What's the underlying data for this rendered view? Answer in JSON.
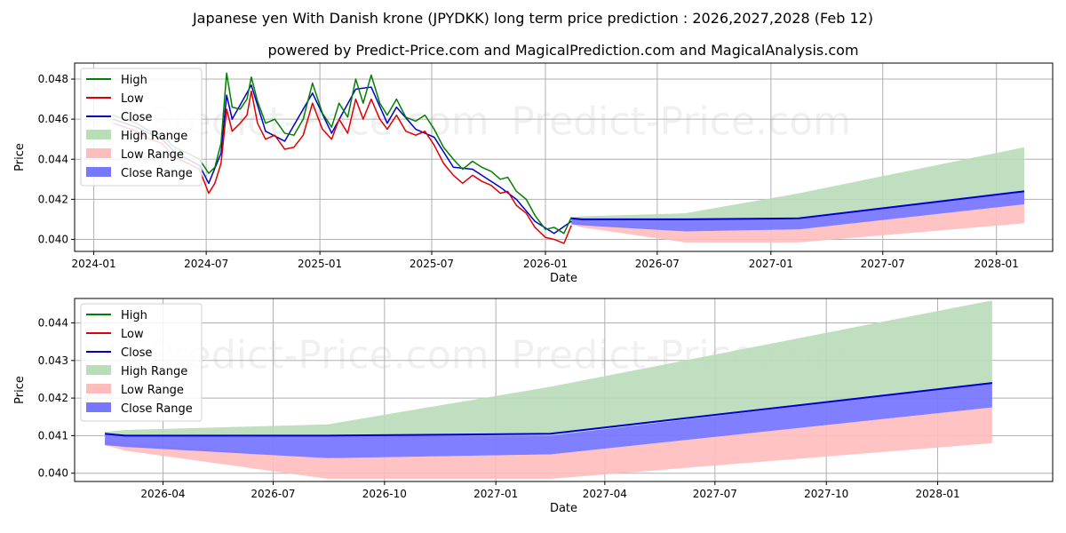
{
  "title": "Japanese yen With Danish krone (JPYDKK) long term price prediction : 2026,2027,2028 (Feb 12)",
  "subtitle": "powered by Predict-Price.com and MagicalPrediction.com and MagicalAnalysis.com",
  "watermark": "Predict-Price.com",
  "colors": {
    "high": "#008000",
    "low": "#e00000",
    "close": "#0000cc",
    "high_range": "#b9dcb9",
    "low_range": "#ffbcbc",
    "close_range": "#7878ff"
  },
  "legend": [
    "High",
    "Low",
    "Close",
    "High Range",
    "Low Range",
    "Close Range"
  ],
  "chart_data": [
    {
      "type": "line",
      "panel": "top",
      "xlabel": "Date",
      "ylabel": "Price",
      "xlim": [
        "2023-12-01",
        "2028-04-01"
      ],
      "ylim": [
        0.0394,
        0.0488
      ],
      "yticks": [
        0.04,
        0.042,
        0.044,
        0.046,
        0.048
      ],
      "ytick_labels": [
        "0.040",
        "0.042",
        "0.044",
        "0.046",
        "0.048"
      ],
      "xticks": [
        "2024-01-01",
        "2024-07-01",
        "2025-01-01",
        "2025-07-01",
        "2026-01-01",
        "2026-07-01",
        "2027-01-01",
        "2027-07-01",
        "2028-01-01"
      ],
      "xtick_labels": [
        "2024-01",
        "2024-07",
        "2025-01",
        "2025-07",
        "2026-01",
        "2026-07",
        "2027-01",
        "2027-07",
        "2028-01"
      ],
      "grid": true,
      "legend_position": "top-left",
      "history_high": [
        [
          "2024-02-01",
          0.0462
        ],
        [
          "2024-02-20",
          0.046
        ],
        [
          "2024-03-10",
          0.0458
        ],
        [
          "2024-04-01",
          0.0454
        ],
        [
          "2024-04-20",
          0.0452
        ],
        [
          "2024-05-10",
          0.0446
        ],
        [
          "2024-06-01",
          0.0443
        ],
        [
          "2024-06-20",
          0.044
        ],
        [
          "2024-07-05",
          0.0433
        ],
        [
          "2024-07-15",
          0.0436
        ],
        [
          "2024-07-25",
          0.0448
        ],
        [
          "2024-08-03",
          0.0483
        ],
        [
          "2024-08-12",
          0.0466
        ],
        [
          "2024-08-25",
          0.0465
        ],
        [
          "2024-09-05",
          0.047
        ],
        [
          "2024-09-12",
          0.0481
        ],
        [
          "2024-09-22",
          0.0469
        ],
        [
          "2024-10-05",
          0.0458
        ],
        [
          "2024-10-20",
          0.046
        ],
        [
          "2024-11-05",
          0.0453
        ],
        [
          "2024-11-20",
          0.0452
        ],
        [
          "2024-12-05",
          0.046
        ],
        [
          "2024-12-20",
          0.0478
        ],
        [
          "2025-01-05",
          0.0463
        ],
        [
          "2025-01-20",
          0.0456
        ],
        [
          "2025-02-01",
          0.0468
        ],
        [
          "2025-02-15",
          0.0461
        ],
        [
          "2025-02-28",
          0.048
        ],
        [
          "2025-03-12",
          0.0468
        ],
        [
          "2025-03-25",
          0.0482
        ],
        [
          "2025-04-08",
          0.0468
        ],
        [
          "2025-04-20",
          0.0462
        ],
        [
          "2025-05-05",
          0.047
        ],
        [
          "2025-05-20",
          0.0461
        ],
        [
          "2025-06-05",
          0.0459
        ],
        [
          "2025-06-20",
          0.0462
        ],
        [
          "2025-07-05",
          0.0455
        ],
        [
          "2025-07-20",
          0.0446
        ],
        [
          "2025-08-05",
          0.044
        ],
        [
          "2025-08-20",
          0.0435
        ],
        [
          "2025-09-05",
          0.0439
        ],
        [
          "2025-09-20",
          0.0436
        ],
        [
          "2025-10-05",
          0.0434
        ],
        [
          "2025-10-20",
          0.043
        ],
        [
          "2025-11-01",
          0.0431
        ],
        [
          "2025-11-15",
          0.0424
        ],
        [
          "2025-12-01",
          0.042
        ],
        [
          "2025-12-15",
          0.0412
        ],
        [
          "2026-01-01",
          0.0405
        ],
        [
          "2026-01-15",
          0.0406
        ],
        [
          "2026-01-31",
          0.0403
        ],
        [
          "2026-02-12",
          0.0411
        ]
      ],
      "history_low": [
        [
          "2024-02-01",
          0.0458
        ],
        [
          "2024-02-20",
          0.0456
        ],
        [
          "2024-03-10",
          0.0454
        ],
        [
          "2024-04-01",
          0.045
        ],
        [
          "2024-04-20",
          0.0448
        ],
        [
          "2024-05-10",
          0.0441
        ],
        [
          "2024-06-01",
          0.0438
        ],
        [
          "2024-06-20",
          0.0435
        ],
        [
          "2024-07-05",
          0.0423
        ],
        [
          "2024-07-15",
          0.0428
        ],
        [
          "2024-07-25",
          0.0438
        ],
        [
          "2024-08-03",
          0.0465
        ],
        [
          "2024-08-12",
          0.0454
        ],
        [
          "2024-08-25",
          0.0458
        ],
        [
          "2024-09-05",
          0.0462
        ],
        [
          "2024-09-12",
          0.0474
        ],
        [
          "2024-09-22",
          0.0458
        ],
        [
          "2024-10-05",
          0.045
        ],
        [
          "2024-10-20",
          0.0452
        ],
        [
          "2024-11-05",
          0.0445
        ],
        [
          "2024-11-20",
          0.0446
        ],
        [
          "2024-12-05",
          0.0452
        ],
        [
          "2024-12-20",
          0.0468
        ],
        [
          "2025-01-05",
          0.0455
        ],
        [
          "2025-01-20",
          0.045
        ],
        [
          "2025-02-01",
          0.046
        ],
        [
          "2025-02-15",
          0.0453
        ],
        [
          "2025-02-28",
          0.047
        ],
        [
          "2025-03-12",
          0.046
        ],
        [
          "2025-03-25",
          0.047
        ],
        [
          "2025-04-08",
          0.046
        ],
        [
          "2025-04-20",
          0.0455
        ],
        [
          "2025-05-05",
          0.0462
        ],
        [
          "2025-05-20",
          0.0454
        ],
        [
          "2025-06-05",
          0.0452
        ],
        [
          "2025-06-20",
          0.0454
        ],
        [
          "2025-07-05",
          0.0447
        ],
        [
          "2025-07-20",
          0.0438
        ],
        [
          "2025-08-05",
          0.0432
        ],
        [
          "2025-08-20",
          0.0428
        ],
        [
          "2025-09-05",
          0.0432
        ],
        [
          "2025-09-20",
          0.0429
        ],
        [
          "2025-10-05",
          0.0427
        ],
        [
          "2025-10-20",
          0.0423
        ],
        [
          "2025-11-01",
          0.0424
        ],
        [
          "2025-11-15",
          0.0417
        ],
        [
          "2025-12-01",
          0.0413
        ],
        [
          "2025-12-15",
          0.0406
        ],
        [
          "2026-01-01",
          0.0401
        ],
        [
          "2026-01-15",
          0.04
        ],
        [
          "2026-01-31",
          0.0398
        ],
        [
          "2026-02-12",
          0.0407
        ]
      ],
      "history_close": [
        [
          "2024-02-01",
          0.046
        ],
        [
          "2024-03-10",
          0.0456
        ],
        [
          "2024-04-20",
          0.045
        ],
        [
          "2024-05-10",
          0.0444
        ],
        [
          "2024-06-01",
          0.044
        ],
        [
          "2024-06-20",
          0.0437
        ],
        [
          "2024-07-05",
          0.0428
        ],
        [
          "2024-07-25",
          0.0443
        ],
        [
          "2024-08-03",
          0.0472
        ],
        [
          "2024-08-12",
          0.046
        ],
        [
          "2024-09-12",
          0.0477
        ],
        [
          "2024-10-05",
          0.0454
        ],
        [
          "2024-11-05",
          0.0449
        ],
        [
          "2024-12-20",
          0.0473
        ],
        [
          "2025-01-20",
          0.0453
        ],
        [
          "2025-02-28",
          0.0475
        ],
        [
          "2025-03-25",
          0.0476
        ],
        [
          "2025-04-20",
          0.0458
        ],
        [
          "2025-05-05",
          0.0466
        ],
        [
          "2025-06-05",
          0.0455
        ],
        [
          "2025-07-05",
          0.0451
        ],
        [
          "2025-08-05",
          0.0436
        ],
        [
          "2025-09-05",
          0.0435
        ],
        [
          "2025-10-20",
          0.0426
        ],
        [
          "2025-11-15",
          0.042
        ],
        [
          "2025-12-15",
          0.0409
        ],
        [
          "2026-01-15",
          0.0403
        ],
        [
          "2026-02-12",
          0.0409
        ]
      ],
      "forecast_dates": [
        "2026-02-12",
        "2026-03-01",
        "2026-08-15",
        "2027-02-15",
        "2028-02-15"
      ],
      "high_range": {
        "upper": [
          0.0411,
          0.04115,
          0.0413,
          0.0423,
          0.0446
        ],
        "lower": [
          0.04105,
          0.041,
          0.041,
          0.041,
          0.0424
        ]
      },
      "low_range": {
        "upper": [
          0.04085,
          0.0408,
          0.0404,
          0.0405,
          0.04175
        ],
        "lower": [
          0.04075,
          0.0406,
          0.03985,
          0.03985,
          0.0408
        ]
      },
      "close_range": {
        "upper": [
          0.04105,
          0.041,
          0.041,
          0.041,
          0.0424
        ],
        "lower": [
          0.04075,
          0.0407,
          0.0404,
          0.0405,
          0.04175
        ]
      },
      "close_forecast": [
        0.04105,
        0.041,
        0.041,
        0.04105,
        0.0424
      ]
    },
    {
      "type": "line",
      "panel": "bottom",
      "xlabel": "Date",
      "ylabel": "Price",
      "xlim": [
        "2026-01-18",
        "2028-04-05"
      ],
      "ylim": [
        0.03978,
        0.04465
      ],
      "yticks": [
        0.04,
        0.041,
        0.042,
        0.043,
        0.044
      ],
      "ytick_labels": [
        "0.040",
        "0.041",
        "0.042",
        "0.043",
        "0.044"
      ],
      "xticks": [
        "2026-04-01",
        "2026-07-01",
        "2026-10-01",
        "2027-01-01",
        "2027-04-01",
        "2027-07-01",
        "2027-10-01",
        "2028-01-01"
      ],
      "xtick_labels": [
        "2026-04",
        "2026-07",
        "2026-10",
        "2027-01",
        "2027-04",
        "2027-07",
        "2027-10",
        "2028-01"
      ],
      "grid": true,
      "legend_position": "top-left",
      "forecast_dates": [
        "2026-02-12",
        "2026-03-01",
        "2026-08-15",
        "2027-02-15",
        "2028-02-15"
      ],
      "high_range": {
        "upper": [
          0.0411,
          0.04115,
          0.0413,
          0.0423,
          0.0446
        ],
        "lower": [
          0.04105,
          0.041,
          0.041,
          0.041,
          0.0424
        ]
      },
      "low_range": {
        "upper": [
          0.04085,
          0.0408,
          0.0404,
          0.0405,
          0.04175
        ],
        "lower": [
          0.04075,
          0.0406,
          0.03985,
          0.03985,
          0.0408
        ]
      },
      "close_range": {
        "upper": [
          0.04105,
          0.041,
          0.041,
          0.041,
          0.0424
        ],
        "lower": [
          0.04075,
          0.0407,
          0.0404,
          0.0405,
          0.04175
        ]
      },
      "close_forecast": [
        0.04105,
        0.041,
        0.041,
        0.04105,
        0.0424
      ]
    }
  ]
}
